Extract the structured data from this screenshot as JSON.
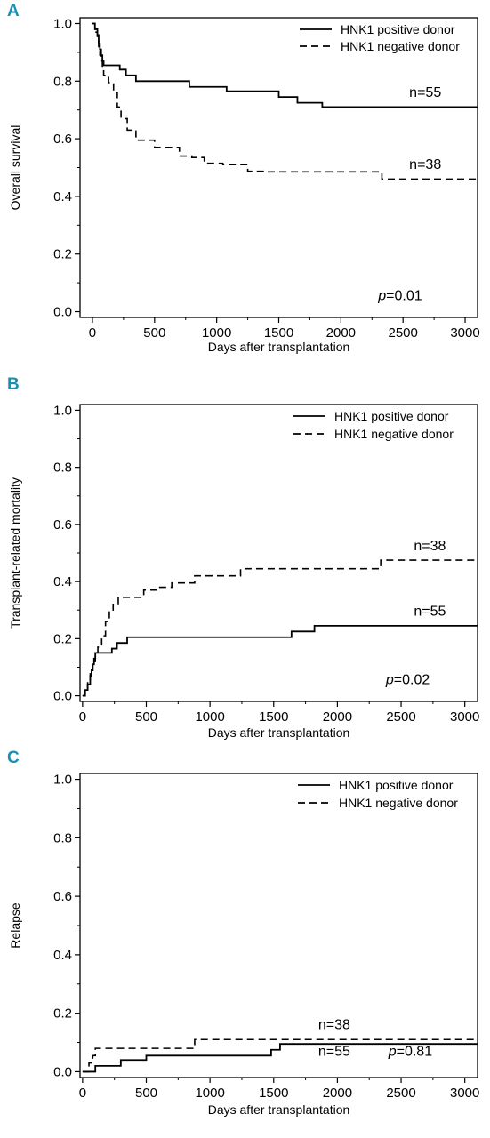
{
  "chart_data": [
    {
      "panel_label": "A",
      "type": "line",
      "xlabel": "Days after transplantation",
      "ylabel": "Overall survival",
      "xlim": [
        -100,
        3100
      ],
      "ylim": [
        -0.02,
        1.02
      ],
      "xticks": [
        "0",
        "500",
        "1000",
        "1500",
        "2000",
        "2500",
        "3000"
      ],
      "yticks": [
        "0.0",
        "0.2",
        "0.4",
        "0.6",
        "0.8",
        "1.0"
      ],
      "legend_position": "top-right",
      "series": [
        {
          "name": "HNK1 positive donor",
          "style": "solid",
          "x": [
            0,
            20,
            40,
            50,
            60,
            70,
            80,
            90,
            220,
            270,
            350,
            780,
            1080,
            1500,
            1650,
            1850,
            3100
          ],
          "y": [
            1.0,
            0.98,
            0.96,
            0.93,
            0.91,
            0.89,
            0.87,
            0.855,
            0.84,
            0.82,
            0.8,
            0.78,
            0.765,
            0.745,
            0.725,
            0.71,
            0.71
          ]
        },
        {
          "name": "HNK1 negative donor",
          "style": "dashed",
          "x": [
            0,
            20,
            40,
            50,
            60,
            70,
            80,
            90,
            130,
            170,
            200,
            230,
            280,
            350,
            400,
            500,
            600,
            700,
            800,
            900,
            1050,
            1250,
            1400,
            2330,
            3100
          ],
          "y": [
            1.0,
            0.97,
            0.95,
            0.92,
            0.89,
            0.87,
            0.845,
            0.82,
            0.795,
            0.76,
            0.71,
            0.67,
            0.63,
            0.595,
            0.595,
            0.57,
            0.57,
            0.54,
            0.535,
            0.515,
            0.51,
            0.487,
            0.485,
            0.46,
            0.46
          ]
        }
      ],
      "annotations": [
        {
          "text": "n=55",
          "x": 2550,
          "y": 0.745
        },
        {
          "text": "n=38",
          "x": 2550,
          "y": 0.495
        },
        {
          "italic": "p",
          "text": "=0.01",
          "x": 2300,
          "y": 0.04
        }
      ]
    },
    {
      "panel_label": "B",
      "type": "line",
      "xlabel": "Days after transplantation",
      "ylabel": "Transplant-related mortality",
      "xlim": [
        -20,
        3100
      ],
      "ylim": [
        -0.02,
        1.02
      ],
      "xticks": [
        "0",
        "500",
        "1000",
        "1500",
        "2000",
        "2500",
        "3000"
      ],
      "yticks": [
        "0.0",
        "0.2",
        "0.4",
        "0.6",
        "0.8",
        "1.0"
      ],
      "legend_position": "top-right",
      "series": [
        {
          "name": "HNK1 positive donor",
          "style": "solid",
          "x": [
            0,
            20,
            40,
            60,
            70,
            80,
            90,
            100,
            230,
            270,
            350,
            1640,
            1820,
            3100
          ],
          "y": [
            0.0,
            0.02,
            0.04,
            0.07,
            0.09,
            0.11,
            0.13,
            0.15,
            0.165,
            0.185,
            0.205,
            0.225,
            0.245,
            0.245
          ]
        },
        {
          "name": "HNK1 negative donor",
          "style": "dashed",
          "x": [
            0,
            20,
            40,
            60,
            80,
            100,
            120,
            150,
            180,
            210,
            240,
            280,
            480,
            580,
            700,
            880,
            1240,
            2340,
            3100
          ],
          "y": [
            0.0,
            0.02,
            0.05,
            0.08,
            0.11,
            0.14,
            0.17,
            0.21,
            0.26,
            0.3,
            0.32,
            0.345,
            0.37,
            0.38,
            0.395,
            0.42,
            0.445,
            0.475,
            0.475
          ]
        }
      ],
      "annotations": [
        {
          "text": "n=38",
          "x": 2600,
          "y": 0.51
        },
        {
          "text": "n=55",
          "x": 2600,
          "y": 0.28
        },
        {
          "italic": "p",
          "text": "=0.02",
          "x": 2380,
          "y": 0.04
        }
      ]
    },
    {
      "panel_label": "C",
      "type": "line",
      "xlabel": "Days after transplantation",
      "ylabel": "Relapse",
      "xlim": [
        -20,
        3100
      ],
      "ylim": [
        -0.02,
        1.02
      ],
      "xticks": [
        "0",
        "500",
        "1000",
        "1500",
        "2000",
        "2500",
        "3000"
      ],
      "yticks": [
        "0.0",
        "0.2",
        "0.4",
        "0.6",
        "0.8",
        "1.0"
      ],
      "legend_position": "top-right",
      "series": [
        {
          "name": "HNK1 positive donor",
          "style": "solid",
          "x": [
            0,
            100,
            300,
            500,
            1480,
            1550,
            3100
          ],
          "y": [
            0.0,
            0.02,
            0.04,
            0.055,
            0.075,
            0.095,
            0.095
          ]
        },
        {
          "name": "HNK1 negative donor",
          "style": "dashed",
          "x": [
            0,
            50,
            80,
            100,
            880,
            3100
          ],
          "y": [
            0.0,
            0.03,
            0.055,
            0.08,
            0.11,
            0.11
          ]
        }
      ],
      "annotations": [
        {
          "text": "n=38",
          "x": 1850,
          "y": 0.145
        },
        {
          "text": "n=55",
          "x": 1850,
          "y": 0.055
        },
        {
          "italic": "p",
          "text": "=0.81",
          "x": 2400,
          "y": 0.055
        }
      ]
    }
  ]
}
